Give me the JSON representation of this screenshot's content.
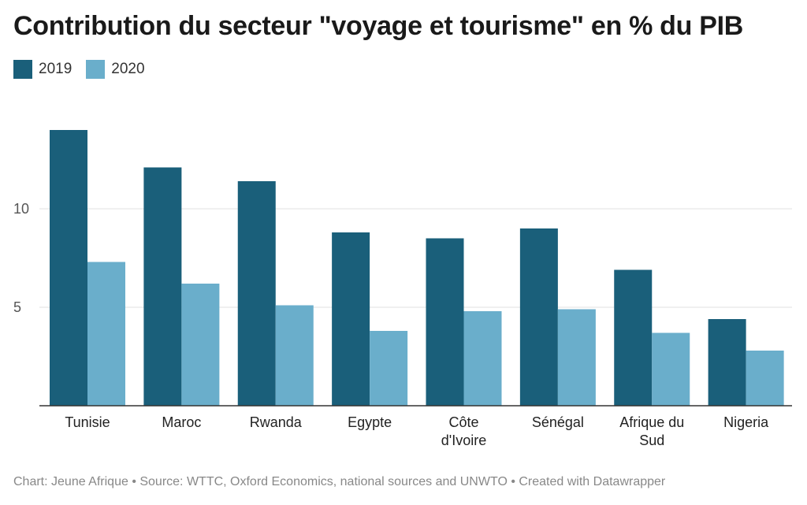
{
  "chart_data": {
    "type": "bar",
    "title": "Contribution du secteur \"voyage et tourisme\" en % du PIB",
    "categories": [
      "Tunisie",
      "Maroc",
      "Rwanda",
      "Egypte",
      "Côte d'Ivoire",
      "Sénégal",
      "Afrique du Sud",
      "Nigeria"
    ],
    "category_lines": [
      [
        "Tunisie"
      ],
      [
        "Maroc"
      ],
      [
        "Rwanda"
      ],
      [
        "Egypte"
      ],
      [
        "Côte",
        "d'Ivoire"
      ],
      [
        "Sénégal"
      ],
      [
        "Afrique du",
        "Sud"
      ],
      [
        "Nigeria"
      ]
    ],
    "series": [
      {
        "name": "2019",
        "color": "#1a5f7a",
        "values": [
          14.0,
          12.1,
          11.4,
          8.8,
          8.5,
          9.0,
          6.9,
          4.4
        ]
      },
      {
        "name": "2020",
        "color": "#6aaecb",
        "values": [
          7.3,
          6.2,
          5.1,
          3.8,
          4.8,
          4.9,
          3.7,
          2.8
        ]
      }
    ],
    "y_ticks": [
      5,
      10
    ],
    "ylim": [
      0,
      15
    ],
    "grid": true,
    "legend_position": "top-left"
  },
  "footer": "Chart: Jeune Afrique • Source: WTTC, Oxford Economics, national sources and UNWTO • Created with Datawrapper"
}
